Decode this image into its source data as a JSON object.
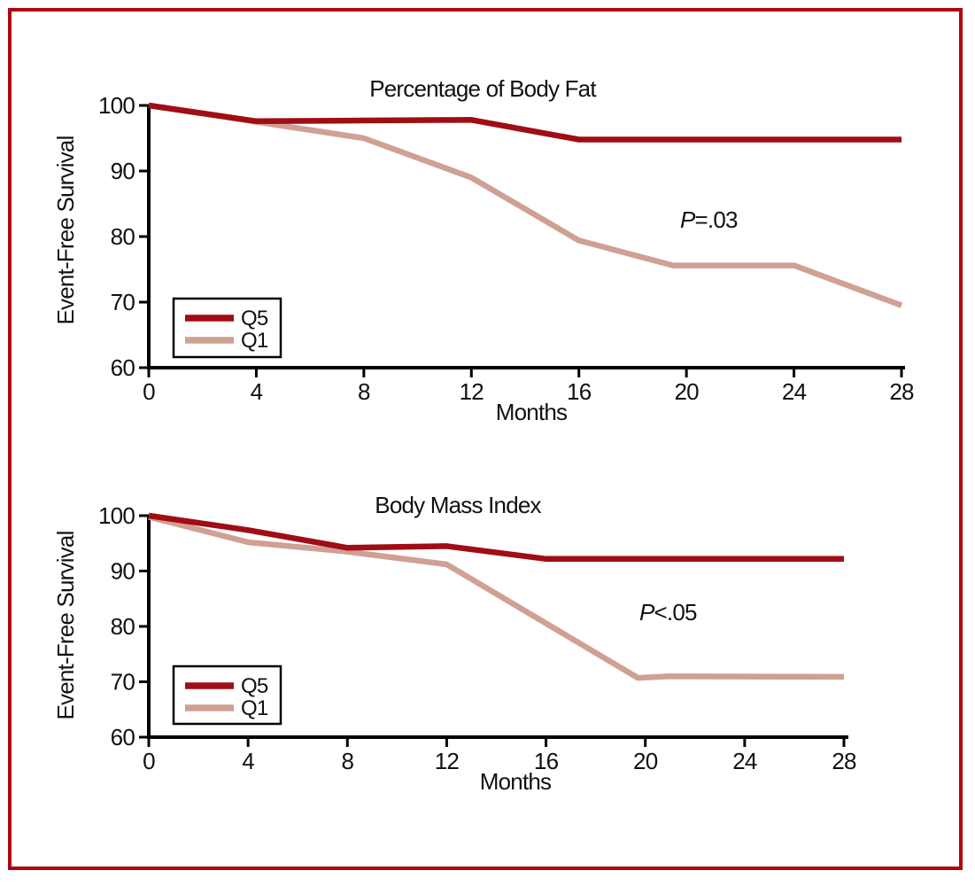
{
  "figure": {
    "background": "#ffffff",
    "border_color": "#b00511"
  },
  "chart_data": [
    {
      "type": "line",
      "title": "Percentage of Body Fat",
      "xlabel": "Months",
      "ylabel": "Event-Free Survival",
      "xlim": [
        0,
        28
      ],
      "ylim": [
        60,
        100
      ],
      "xticks": [
        0,
        4,
        8,
        12,
        16,
        20,
        24,
        28
      ],
      "yticks": [
        60,
        70,
        80,
        90,
        100
      ],
      "grid": false,
      "legend_position": "lower-left",
      "annotation": {
        "italic": "P",
        "text": "=.03"
      },
      "series": [
        {
          "name": "Q5",
          "color": "#a00d14",
          "points": [
            [
              0,
              100
            ],
            [
              4,
              97.6
            ],
            [
              8,
              97.7
            ],
            [
              12,
              97.8
            ],
            [
              16,
              94.8
            ],
            [
              28,
              94.8
            ]
          ]
        },
        {
          "name": "Q1",
          "color": "#cfa093",
          "points": [
            [
              0,
              100
            ],
            [
              4,
              97.5
            ],
            [
              8,
              95.0
            ],
            [
              12,
              89.0
            ],
            [
              16,
              79.4
            ],
            [
              19.5,
              75.6
            ],
            [
              24,
              75.6
            ],
            [
              28,
              69.5
            ]
          ]
        }
      ]
    },
    {
      "type": "line",
      "title": "Body Mass Index",
      "xlabel": "Months",
      "ylabel": "Event-Free Survival",
      "xlim": [
        0,
        28
      ],
      "ylim": [
        60,
        100
      ],
      "xticks": [
        0,
        4,
        8,
        12,
        16,
        20,
        24,
        28
      ],
      "yticks": [
        60,
        70,
        80,
        90,
        100
      ],
      "grid": false,
      "legend_position": "lower-left",
      "annotation": {
        "italic": "P",
        "text": "<.05"
      },
      "series": [
        {
          "name": "Q5",
          "color": "#a00d14",
          "points": [
            [
              0,
              100
            ],
            [
              4,
              97.4
            ],
            [
              8,
              94.2
            ],
            [
              12,
              94.5
            ],
            [
              16,
              92.2
            ],
            [
              28,
              92.2
            ]
          ]
        },
        {
          "name": "Q1",
          "color": "#cfa093",
          "points": [
            [
              0,
              99.8
            ],
            [
              4,
              95.2
            ],
            [
              8,
              93.5
            ],
            [
              12,
              91.2
            ],
            [
              19.7,
              70.7
            ],
            [
              21,
              71.0
            ],
            [
              28,
              70.9
            ]
          ]
        }
      ]
    }
  ]
}
